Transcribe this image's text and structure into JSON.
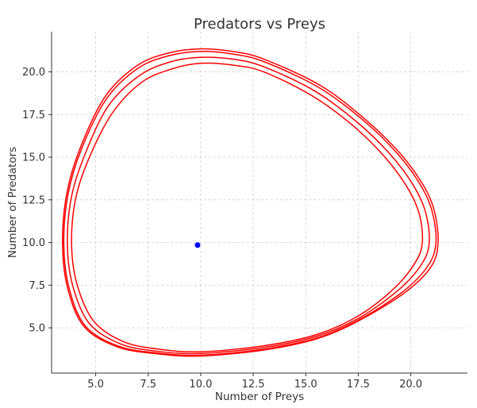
{
  "chart_data": {
    "type": "line",
    "title": "Predators vs Preys",
    "xlabel": "Number of Preys",
    "ylabel": "Number of Predators",
    "xlim": [
      2.9,
      22.7
    ],
    "ylim": [
      2.35,
      22.35
    ],
    "xticks": [
      5.0,
      7.5,
      10.0,
      12.5,
      15.0,
      17.5,
      20.0
    ],
    "yticks": [
      5.0,
      7.5,
      10.0,
      12.5,
      15.0,
      17.5,
      20.0
    ],
    "xtick_labels": [
      "5.0",
      "7.5",
      "10.0",
      "12.5",
      "15.0",
      "17.5",
      "20.0"
    ],
    "ytick_labels": [
      "5.0",
      "7.5",
      "10.0",
      "12.5",
      "15.0",
      "17.5",
      "20.0"
    ],
    "grid": true,
    "series": [
      {
        "color": "#ff0000",
        "cycles": [
          {
            "points": [
              [
                10.0,
                3.6
              ],
              [
                13.0,
                3.95
              ],
              [
                15.5,
                4.6
              ],
              [
                17.5,
                5.7
              ],
              [
                19.2,
                7.3
              ],
              [
                20.2,
                8.8
              ],
              [
                20.55,
                10.0
              ],
              [
                20.4,
                11.7
              ],
              [
                19.8,
                13.3
              ],
              [
                18.7,
                15.1
              ],
              [
                17.2,
                16.9
              ],
              [
                15.3,
                18.6
              ],
              [
                13.0,
                20.0
              ],
              [
                11.5,
                20.4
              ],
              [
                10.0,
                20.5
              ],
              [
                8.7,
                20.2
              ],
              [
                7.2,
                19.4
              ],
              [
                5.8,
                17.6
              ],
              [
                4.7,
                15.0
              ],
              [
                4.05,
                12.6
              ],
              [
                3.85,
                10.0
              ],
              [
                4.1,
                7.6
              ],
              [
                4.9,
                5.4
              ],
              [
                6.3,
                4.2
              ],
              [
                8.0,
                3.75
              ],
              [
                10.0,
                3.6
              ]
            ]
          },
          {
            "points": [
              [
                10.0,
                3.5
              ],
              [
                13.0,
                3.85
              ],
              [
                15.5,
                4.5
              ],
              [
                17.5,
                5.55
              ],
              [
                19.4,
                7.2
              ],
              [
                20.5,
                8.7
              ],
              [
                20.88,
                10.0
              ],
              [
                20.7,
                11.8
              ],
              [
                20.1,
                13.4
              ],
              [
                19.0,
                15.2
              ],
              [
                17.4,
                17.1
              ],
              [
                15.4,
                18.9
              ],
              [
                13.0,
                20.3
              ],
              [
                11.5,
                20.75
              ],
              [
                10.0,
                20.85
              ],
              [
                8.6,
                20.6
              ],
              [
                7.1,
                19.8
              ],
              [
                5.6,
                18.0
              ],
              [
                4.5,
                15.2
              ],
              [
                3.85,
                12.7
              ],
              [
                3.65,
                10.0
              ],
              [
                3.9,
                7.5
              ],
              [
                4.7,
                5.25
              ],
              [
                6.2,
                4.05
              ],
              [
                8.0,
                3.62
              ],
              [
                10.0,
                3.5
              ]
            ]
          },
          {
            "points": [
              [
                10.0,
                3.4
              ],
              [
                13.0,
                3.75
              ],
              [
                15.5,
                4.4
              ],
              [
                17.5,
                5.45
              ],
              [
                19.6,
                7.1
              ],
              [
                20.8,
                8.6
              ],
              [
                21.2,
                10.0
              ],
              [
                21.0,
                11.9
              ],
              [
                20.4,
                13.5
              ],
              [
                19.3,
                15.3
              ],
              [
                17.7,
                17.2
              ],
              [
                15.6,
                19.1
              ],
              [
                13.0,
                20.6
              ],
              [
                11.5,
                21.05
              ],
              [
                10.0,
                21.2
              ],
              [
                8.5,
                20.95
              ],
              [
                7.0,
                20.2
              ],
              [
                5.5,
                18.4
              ],
              [
                4.3,
                15.4
              ],
              [
                3.68,
                12.8
              ],
              [
                3.48,
                10.0
              ],
              [
                3.72,
                7.4
              ],
              [
                4.5,
                5.12
              ],
              [
                6.1,
                3.92
              ],
              [
                8.0,
                3.52
              ],
              [
                10.0,
                3.4
              ]
            ]
          },
          {
            "points": [
              [
                10.0,
                3.35
              ],
              [
                13.0,
                3.7
              ],
              [
                15.5,
                4.35
              ],
              [
                17.5,
                5.4
              ],
              [
                19.7,
                7.05
              ],
              [
                20.95,
                8.55
              ],
              [
                21.3,
                10.0
              ],
              [
                21.1,
                11.95
              ],
              [
                20.5,
                13.55
              ],
              [
                19.4,
                15.35
              ],
              [
                17.8,
                17.25
              ],
              [
                15.7,
                19.2
              ],
              [
                13.0,
                20.75
              ],
              [
                11.5,
                21.2
              ],
              [
                10.0,
                21.35
              ],
              [
                8.45,
                21.1
              ],
              [
                6.95,
                20.35
              ],
              [
                5.45,
                18.55
              ],
              [
                4.25,
                15.5
              ],
              [
                3.62,
                12.85
              ],
              [
                3.42,
                10.0
              ],
              [
                3.66,
                7.35
              ],
              [
                4.45,
                5.07
              ],
              [
                6.05,
                3.88
              ],
              [
                8.0,
                3.47
              ],
              [
                10.0,
                3.35
              ]
            ]
          }
        ]
      }
    ],
    "points": [
      {
        "x": 9.85,
        "y": 9.85,
        "color": "#0000ff"
      }
    ]
  }
}
